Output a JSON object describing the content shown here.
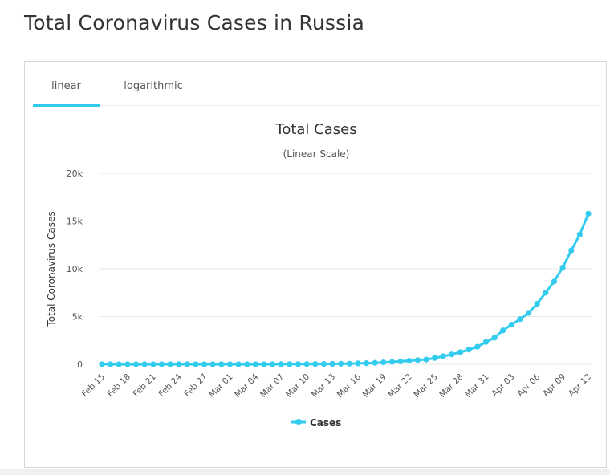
{
  "page": {
    "title": "Total Coronavirus Cases in Russia"
  },
  "tabs": [
    {
      "label": "linear",
      "active": true
    },
    {
      "label": "logarithmic",
      "active": false
    }
  ],
  "colors": {
    "series": "#33ccee",
    "tab_active": "#33ccee",
    "grid": "#e6e6e6"
  },
  "chart_data": {
    "type": "line",
    "title": "Total Cases",
    "subtitle": "(Linear Scale)",
    "ylabel": "Total Coronavirus Cases",
    "xlabel": "",
    "ylim": [
      0,
      20000
    ],
    "yticks": [
      0,
      5000,
      10000,
      15000,
      20000
    ],
    "ytick_labels": [
      "0",
      "5k",
      "10k",
      "15k",
      "20k"
    ],
    "xtick_labels": [
      "Feb 15",
      "Feb 18",
      "Feb 21",
      "Feb 24",
      "Feb 27",
      "Mar 01",
      "Mar 04",
      "Mar 07",
      "Mar 10",
      "Mar 13",
      "Mar 16",
      "Mar 19",
      "Mar 22",
      "Mar 25",
      "Mar 28",
      "Mar 31",
      "Apr 03",
      "Apr 06",
      "Apr 09",
      "Apr 12"
    ],
    "grid": true,
    "legend_position": "bottom",
    "x": [
      "Feb 15",
      "Feb 16",
      "Feb 17",
      "Feb 18",
      "Feb 19",
      "Feb 20",
      "Feb 21",
      "Feb 22",
      "Feb 23",
      "Feb 24",
      "Feb 25",
      "Feb 26",
      "Feb 27",
      "Feb 28",
      "Feb 29",
      "Mar 01",
      "Mar 02",
      "Mar 03",
      "Mar 04",
      "Mar 05",
      "Mar 06",
      "Mar 07",
      "Mar 08",
      "Mar 09",
      "Mar 10",
      "Mar 11",
      "Mar 12",
      "Mar 13",
      "Mar 14",
      "Mar 15",
      "Mar 16",
      "Mar 17",
      "Mar 18",
      "Mar 19",
      "Mar 20",
      "Mar 21",
      "Mar 22",
      "Mar 23",
      "Mar 24",
      "Mar 25",
      "Mar 26",
      "Mar 27",
      "Mar 28",
      "Mar 29",
      "Mar 30",
      "Mar 31",
      "Apr 01",
      "Apr 02",
      "Apr 03",
      "Apr 04",
      "Apr 05",
      "Apr 06",
      "Apr 07",
      "Apr 08",
      "Apr 09",
      "Apr 10",
      "Apr 11",
      "Apr 12"
    ],
    "series": [
      {
        "name": "Cases",
        "values": [
          2,
          2,
          2,
          2,
          2,
          2,
          2,
          2,
          2,
          2,
          2,
          2,
          2,
          2,
          2,
          2,
          3,
          3,
          3,
          4,
          4,
          10,
          17,
          17,
          20,
          28,
          34,
          45,
          59,
          63,
          93,
          114,
          147,
          199,
          253,
          306,
          367,
          438,
          495,
          658,
          840,
          1036,
          1264,
          1534,
          1836,
          2337,
          2777,
          3548,
          4149,
          4731,
          5389,
          6343,
          7497,
          8672,
          10131,
          11917,
          13584,
          15770
        ]
      }
    ]
  }
}
